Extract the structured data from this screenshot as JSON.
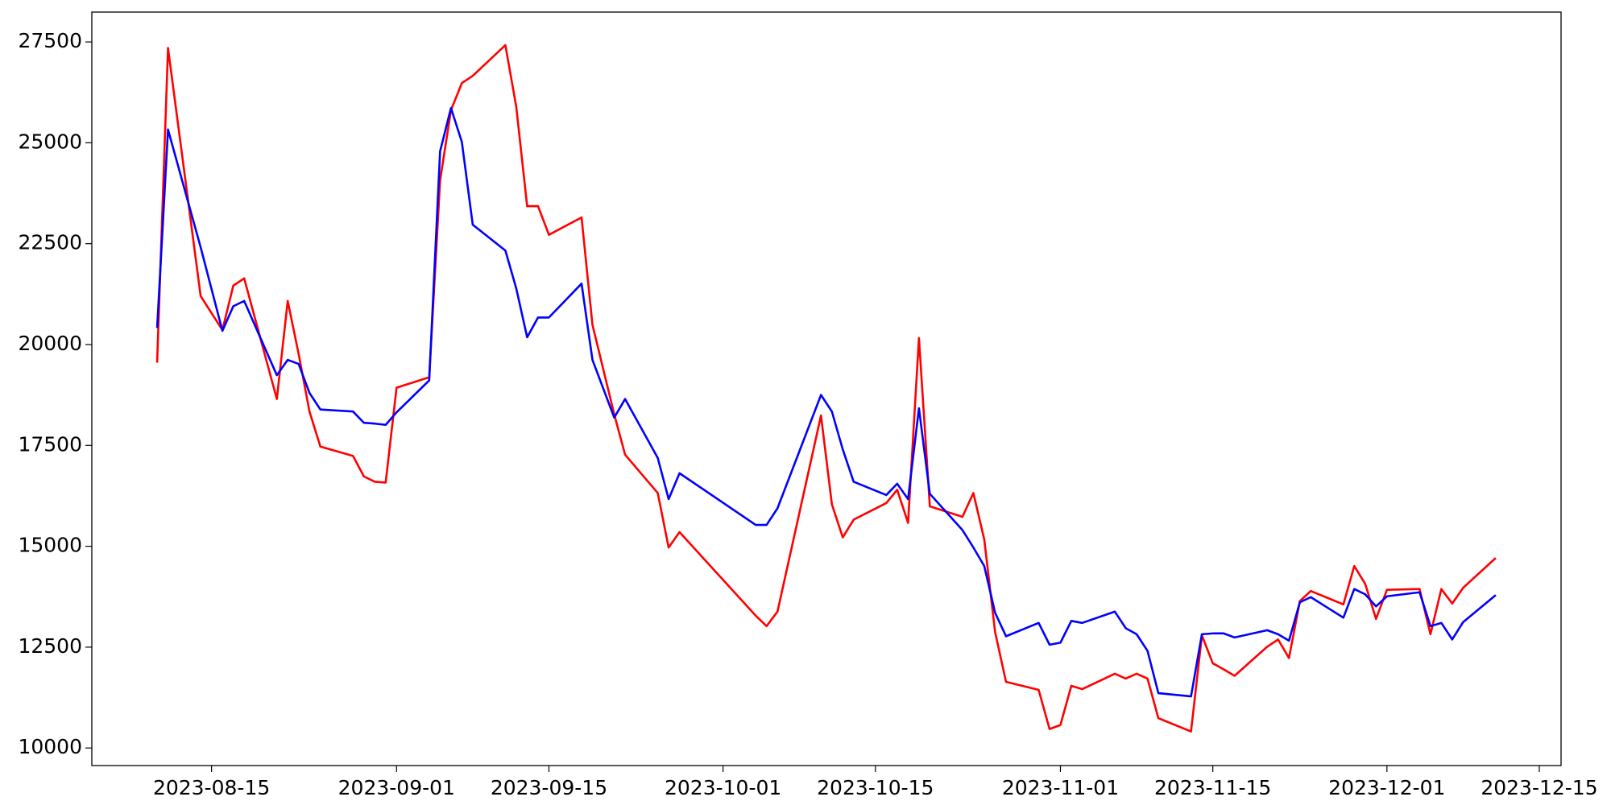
{
  "chart_data": {
    "type": "line",
    "x": [
      "2023-08-10",
      "2023-08-11",
      "2023-08-14",
      "2023-08-16",
      "2023-08-17",
      "2023-08-18",
      "2023-08-21",
      "2023-08-22",
      "2023-08-23",
      "2023-08-24",
      "2023-08-25",
      "2023-08-28",
      "2023-08-29",
      "2023-08-30",
      "2023-08-31",
      "2023-09-01",
      "2023-09-04",
      "2023-09-05",
      "2023-09-06",
      "2023-09-07",
      "2023-09-08",
      "2023-09-11",
      "2023-09-12",
      "2023-09-13",
      "2023-09-14",
      "2023-09-15",
      "2023-09-18",
      "2023-09-19",
      "2023-09-21",
      "2023-09-22",
      "2023-09-25",
      "2023-09-26",
      "2023-09-27",
      "2023-10-04",
      "2023-10-05",
      "2023-10-06",
      "2023-10-10",
      "2023-10-11",
      "2023-10-12",
      "2023-10-13",
      "2023-10-16",
      "2023-10-17",
      "2023-10-18",
      "2023-10-19",
      "2023-10-20",
      "2023-10-23",
      "2023-10-24",
      "2023-10-25",
      "2023-10-26",
      "2023-10-27",
      "2023-10-30",
      "2023-10-31",
      "2023-11-01",
      "2023-11-02",
      "2023-11-03",
      "2023-11-06",
      "2023-11-07",
      "2023-11-08",
      "2023-11-09",
      "2023-11-10",
      "2023-11-13",
      "2023-11-14",
      "2023-11-15",
      "2023-11-16",
      "2023-11-17",
      "2023-11-20",
      "2023-11-21",
      "2023-11-22",
      "2023-11-23",
      "2023-11-24",
      "2023-11-27",
      "2023-11-28",
      "2023-11-29",
      "2023-11-30",
      "2023-12-01",
      "2023-12-04",
      "2023-12-05",
      "2023-12-06",
      "2023-12-07",
      "2023-12-08",
      "2023-12-11"
    ],
    "series": [
      {
        "color": "#ff0000",
        "values": [
          19550,
          27350,
          21200,
          20360,
          21460,
          21640,
          18650,
          21080,
          19770,
          18340,
          17470,
          17240,
          16730,
          16600,
          16580,
          18930,
          19190,
          24070,
          25810,
          26480,
          26660,
          27420,
          25890,
          23430,
          23430,
          22720,
          23150,
          20490,
          18270,
          17270,
          16320,
          14970,
          15350,
          13280,
          13020,
          13380,
          18240,
          16040,
          15220,
          15660,
          16070,
          16400,
          15580,
          20160,
          15990,
          15730,
          16320,
          15170,
          12870,
          11640,
          11440,
          10470,
          10570,
          11540,
          11460,
          11840,
          11720,
          11840,
          11720,
          10740,
          10410,
          12790,
          12100,
          11950,
          11790,
          12510,
          12690,
          12230,
          13640,
          13890,
          13560,
          14510,
          14070,
          13200,
          13920,
          13940,
          12820,
          13940,
          13580,
          13970,
          14710
        ]
      },
      {
        "color": "#0000ff",
        "values": [
          20410,
          25330,
          22410,
          20340,
          20950,
          21080,
          19240,
          19620,
          19520,
          18800,
          18390,
          18340,
          18060,
          18040,
          18010,
          18320,
          19110,
          24790,
          25860,
          25020,
          22970,
          22330,
          21390,
          20180,
          20670,
          20670,
          21510,
          19620,
          18190,
          18650,
          17190,
          16170,
          16810,
          15530,
          15530,
          15940,
          18750,
          18340,
          17400,
          16600,
          16270,
          16550,
          16170,
          18420,
          16300,
          15400,
          14970,
          14510,
          13350,
          12770,
          13100,
          12560,
          12610,
          13150,
          13100,
          13380,
          12970,
          12820,
          12410,
          11360,
          11280,
          12820,
          12840,
          12840,
          12740,
          12920,
          12820,
          12660,
          13610,
          13740,
          13230,
          13940,
          13810,
          13510,
          13760,
          13860,
          13020,
          13100,
          12690,
          13120,
          13790
        ]
      }
    ],
    "xlim": [
      "2023-08-04",
      "2023-12-17"
    ],
    "xticks": [
      "2023-08-15",
      "2023-09-01",
      "2023-09-15",
      "2023-10-01",
      "2023-10-15",
      "2023-11-01",
      "2023-11-15",
      "2023-12-01",
      "2023-12-15"
    ],
    "ylim": [
      9565,
      28240
    ],
    "yticks": [
      10000,
      12500,
      15000,
      17500,
      20000,
      22500,
      25000,
      27500
    ],
    "grid": false
  }
}
